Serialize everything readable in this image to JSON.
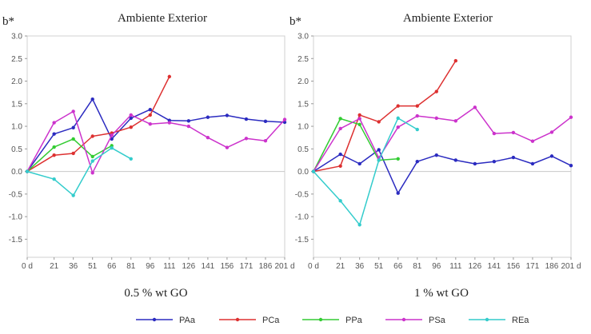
{
  "chart_data": [
    {
      "type": "line",
      "title": "Ambiente Exterior",
      "ylabel": "b*",
      "subtitle": "0.5 % wt GO",
      "x_unit_label": "d",
      "ylim": [
        -1.9,
        3.0
      ],
      "yticks": [
        "3.0",
        "2.5",
        "2.0",
        "1.5",
        "1.0",
        "0.5",
        "0.0",
        "-0.5",
        "-1.0",
        "-1.5"
      ],
      "xticks": [
        "0 d",
        "21",
        "36",
        "51",
        "66",
        "81",
        "96",
        "111",
        "126",
        "141",
        "156",
        "171",
        "186",
        "201 d"
      ],
      "series": [
        {
          "name": "PAa",
          "color": "#2b2bc0",
          "x": [
            0,
            21,
            36,
            51,
            66,
            81,
            96,
            111,
            126,
            141,
            156,
            171,
            186,
            201
          ],
          "values": [
            0.0,
            0.83,
            0.97,
            1.6,
            0.72,
            1.18,
            1.37,
            1.13,
            1.12,
            1.2,
            1.24,
            1.16,
            1.11,
            1.09
          ]
        },
        {
          "name": "PCa",
          "color": "#dd3030",
          "x": [
            0,
            21,
            36,
            51,
            66,
            81,
            96,
            111
          ],
          "values": [
            0.0,
            0.36,
            0.4,
            0.78,
            0.85,
            0.98,
            1.25,
            2.1
          ]
        },
        {
          "name": "PPa",
          "color": "#33cc33",
          "x": [
            0,
            21,
            36,
            51,
            66
          ],
          "values": [
            0.0,
            0.54,
            0.72,
            0.33,
            0.57
          ]
        },
        {
          "name": "PSa",
          "color": "#cc33cc",
          "x": [
            0,
            21,
            36,
            51,
            66,
            81,
            96,
            111,
            126,
            141,
            156,
            171,
            186,
            201
          ],
          "values": [
            0.0,
            1.08,
            1.33,
            -0.03,
            0.8,
            1.25,
            1.05,
            1.08,
            1.0,
            0.75,
            0.53,
            0.73,
            0.68,
            1.15
          ]
        },
        {
          "name": "REa",
          "color": "#33cccc",
          "x": [
            0,
            21,
            36,
            51,
            66,
            81
          ],
          "values": [
            0.0,
            -0.17,
            -0.53,
            0.23,
            0.52,
            0.28
          ]
        }
      ]
    },
    {
      "type": "line",
      "title": "Ambiente Exterior",
      "ylabel": "b*",
      "subtitle": "1 % wt GO",
      "x_unit_label": "d",
      "ylim": [
        -1.9,
        3.0
      ],
      "yticks": [
        "3.0",
        "2.5",
        "2.0",
        "1.5",
        "1.0",
        "0.5",
        "0.0",
        "-0.5",
        "-1.0",
        "-1.5"
      ],
      "xticks": [
        "0 d",
        "21",
        "36",
        "51",
        "66",
        "81",
        "96",
        "111",
        "126",
        "141",
        "156",
        "171",
        "186",
        "201 d"
      ],
      "series": [
        {
          "name": "PAa",
          "color": "#2b2bc0",
          "x": [
            0,
            21,
            36,
            51,
            66,
            81,
            96,
            111,
            126,
            141,
            156,
            171,
            186,
            201
          ],
          "values": [
            0.0,
            0.38,
            0.17,
            0.48,
            -0.48,
            0.22,
            0.36,
            0.25,
            0.17,
            0.22,
            0.31,
            0.17,
            0.34,
            0.13
          ]
        },
        {
          "name": "PCa",
          "color": "#dd3030",
          "x": [
            0,
            21,
            36,
            51,
            66,
            81,
            96,
            111
          ],
          "values": [
            0.0,
            0.12,
            1.25,
            1.1,
            1.45,
            1.45,
            1.77,
            2.45
          ]
        },
        {
          "name": "PPa",
          "color": "#33cc33",
          "x": [
            0,
            21,
            36,
            51,
            66
          ],
          "values": [
            0.0,
            1.17,
            1.04,
            0.25,
            0.28
          ]
        },
        {
          "name": "PSa",
          "color": "#cc33cc",
          "x": [
            0,
            21,
            36,
            51,
            66,
            81,
            96,
            111,
            126,
            141,
            156,
            171,
            186,
            201
          ],
          "values": [
            0.0,
            0.95,
            1.17,
            0.3,
            0.98,
            1.23,
            1.18,
            1.12,
            1.42,
            0.84,
            0.86,
            0.67,
            0.87,
            1.2
          ]
        },
        {
          "name": "REa",
          "color": "#33cccc",
          "x": [
            0,
            21,
            36,
            51,
            66,
            81
          ],
          "values": [
            0.0,
            -0.65,
            -1.18,
            0.25,
            1.18,
            0.93
          ]
        }
      ]
    }
  ],
  "legend": [
    {
      "name": "PAa",
      "color": "#2b2bc0"
    },
    {
      "name": "PCa",
      "color": "#dd3030"
    },
    {
      "name": "PPa",
      "color": "#33cc33"
    },
    {
      "name": "PSa",
      "color": "#cc33cc"
    },
    {
      "name": "REa",
      "color": "#33cccc"
    }
  ]
}
